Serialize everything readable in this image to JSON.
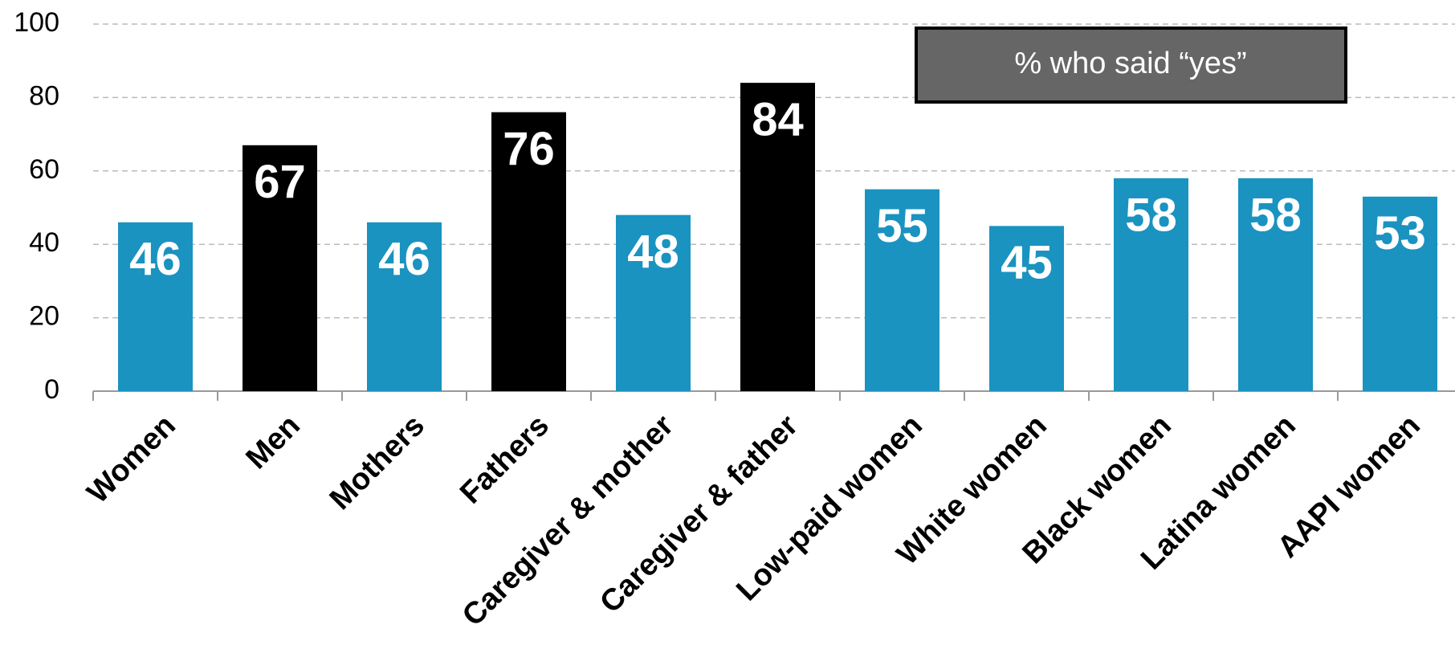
{
  "chart_data": {
    "type": "bar",
    "categories": [
      "Women",
      "Men",
      "Mothers",
      "Fathers",
      "Caregiver & mother",
      "Caregiver & father",
      "Low-paid women",
      "White women",
      "Black women",
      "Latina women",
      "AAPI women"
    ],
    "values": [
      46,
      67,
      46,
      76,
      48,
      84,
      55,
      45,
      58,
      58,
      53
    ],
    "colors": [
      "#1a93c0",
      "#000000",
      "#1a93c0",
      "#000000",
      "#1a93c0",
      "#000000",
      "#1a93c0",
      "#1a93c0",
      "#1a93c0",
      "#1a93c0",
      "#1a93c0"
    ],
    "ylim": [
      0,
      100
    ],
    "yticks": [
      0,
      20,
      40,
      60,
      80,
      100
    ],
    "grid": true,
    "annotation": "% who said “yes”"
  }
}
